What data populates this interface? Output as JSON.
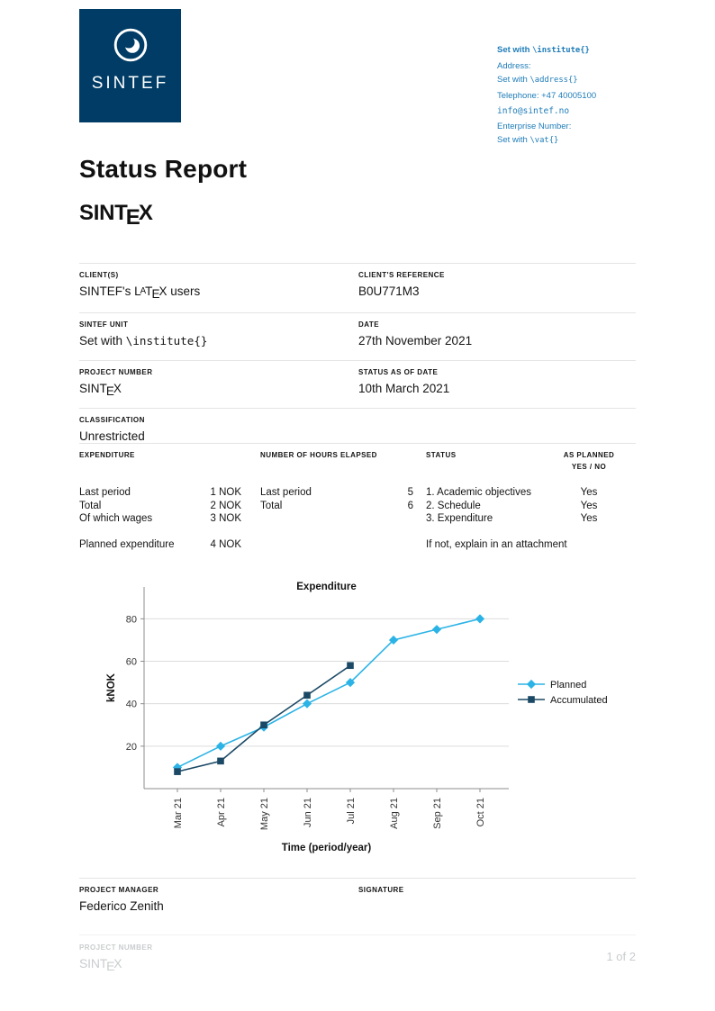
{
  "logo": {
    "name": "SINTEF"
  },
  "contact": {
    "institute_prefix": "Set with ",
    "institute_code": "\\institute{}",
    "address_label": "Address:",
    "address_prefix": "Set with ",
    "address_code": "\\address{}",
    "telephone": "Telephone: +47 40005100",
    "email": "info@sintef.no",
    "enterprise_label": "Enterprise Number:",
    "vat_prefix": "Set with ",
    "vat_code": "\\vat{}"
  },
  "title": "Status Report",
  "project_logo": {
    "pre": "SINT",
    "sub_e": "E",
    "post": "X"
  },
  "info_table": {
    "clients_label": "CLIENT(S)",
    "clients_value": {
      "pre": "SINTEF's L",
      "sup_a": "A",
      "mid_t": "T",
      "sub_e": "E",
      "post": "X users"
    },
    "reference_label": "CLIENT'S REFERENCE",
    "reference_value": "B0U771M3",
    "unit_label": "SINTEF UNIT",
    "unit_prefix": "Set with ",
    "unit_code": "\\institute{}",
    "date_label": "DATE",
    "date_value": "27th November 2021",
    "project_label": "PROJECT NUMBER",
    "status_date_label": "STATUS AS OF DATE",
    "status_date_value": "10th March 2021",
    "classification_label": "CLASSIFICATION",
    "classification_value": "Unrestricted"
  },
  "fin_table": {
    "expenditure": {
      "header": "EXPENDITURE",
      "rows": [
        {
          "label": "Last period",
          "value": "1 NOK"
        },
        {
          "label": "Total",
          "value": "2 NOK"
        },
        {
          "label": "Of which wages",
          "value": "3 NOK"
        }
      ],
      "planned": {
        "label": "Planned expenditure",
        "value": "4 NOK"
      }
    },
    "hours": {
      "header": "NUMBER OF HOURS ELAPSED",
      "rows": [
        {
          "label": "Last period",
          "value": "5"
        },
        {
          "label": "Total",
          "value": "6"
        }
      ]
    },
    "status": {
      "header": "STATUS",
      "rows": [
        "1. Academic objectives",
        "2. Schedule",
        "3. Expenditure"
      ],
      "note": "If not, explain in an attachment"
    },
    "as_planned": {
      "header_line1": "AS PLANNED",
      "header_line2": "YES / NO",
      "rows": [
        "Yes",
        "Yes",
        "Yes"
      ]
    }
  },
  "chart_data": {
    "type": "line",
    "title": "Expenditure",
    "xlabel": "Time (period/year)",
    "ylabel": "kNOK",
    "categories": [
      "Mar 21",
      "Apr 21",
      "May 21",
      "Jun 21",
      "Jul 21",
      "Aug 21",
      "Sep 21",
      "Oct 21"
    ],
    "series": [
      {
        "name": "Planned",
        "color": "#2bb3e6",
        "marker": "diamond",
        "values": [
          10,
          20,
          29,
          40,
          50,
          70,
          75,
          80
        ]
      },
      {
        "name": "Accumulated",
        "color": "#1b4965",
        "marker": "square",
        "values": [
          8,
          13,
          30,
          44,
          58
        ]
      }
    ],
    "ylim": [
      0,
      95
    ],
    "yticks": [
      20,
      40,
      60,
      80
    ],
    "grid": "horizontal",
    "legend_position": "right"
  },
  "signature": {
    "manager_label": "PROJECT MANAGER",
    "manager_value": "Federico Zenith",
    "signature_label": "SIGNATURE"
  },
  "footer": {
    "project_label": "PROJECT NUMBER",
    "page": "1 of 2"
  },
  "colors": {
    "brand_navy": "#003C65",
    "contact_blue": "#1e7cb8",
    "planned_line": "#2bb3e6",
    "accumulated_line": "#1b4965",
    "footer_gray": "#c9ccce"
  }
}
